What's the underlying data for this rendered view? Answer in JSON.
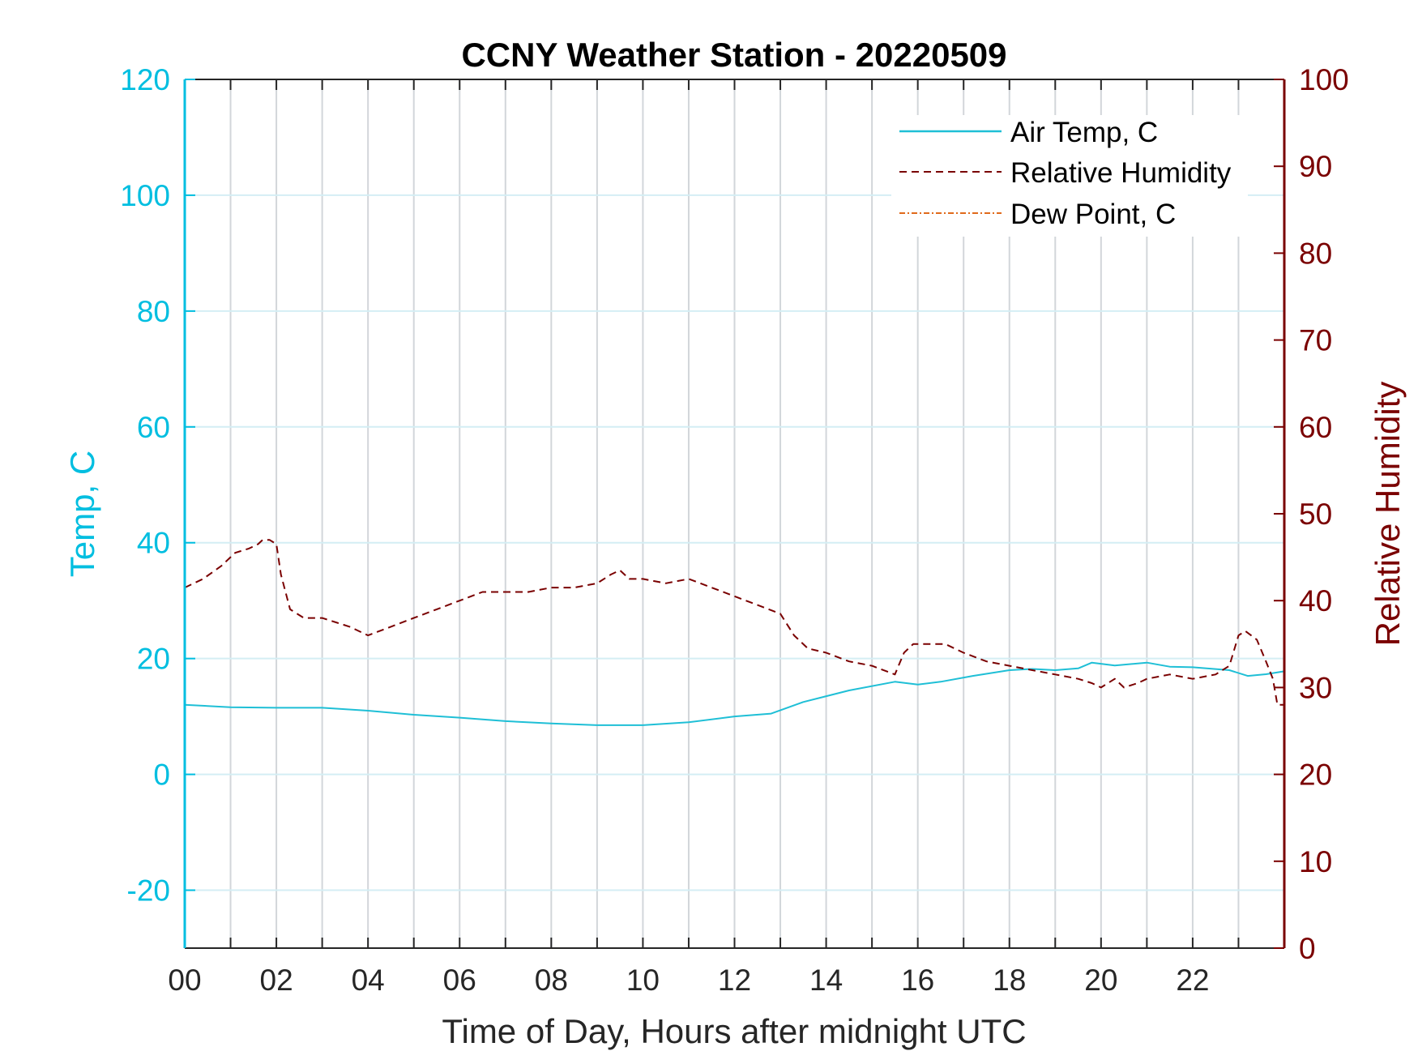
{
  "chart_data": {
    "type": "line",
    "title": "CCNY Weather Station - 20220509",
    "xlabel": "Time of Day, Hours after midnight UTC",
    "ylabel_left": "Temp, C",
    "ylabel_right": "Relative Humidity",
    "xlim": [
      0,
      24
    ],
    "ylim_left": [
      -30,
      120
    ],
    "ylim_right": [
      0,
      100
    ],
    "x_ticks": [
      0,
      2,
      4,
      6,
      8,
      10,
      12,
      14,
      16,
      18,
      20,
      22
    ],
    "x_tick_labels": [
      "00",
      "02",
      "04",
      "06",
      "08",
      "10",
      "12",
      "14",
      "16",
      "18",
      "20",
      "22"
    ],
    "y_ticks_left": [
      120,
      100,
      80,
      60,
      40,
      20,
      0,
      -20
    ],
    "y_ticks_right": [
      100,
      90,
      80,
      70,
      60,
      50,
      40,
      30,
      20,
      10,
      0
    ],
    "grid": true,
    "legend_position": "top-right",
    "colors": {
      "left_axis": "#00BEE0",
      "right_axis": "#7A0000",
      "air_temp": "#1FBFD6",
      "humidity": "#7A0000",
      "dew_point": "#E06A1B"
    },
    "series": [
      {
        "name": "Air Temp, C",
        "axis": "left",
        "style": "solid",
        "x": [
          0,
          1,
          2,
          3,
          4,
          5,
          6,
          7,
          8,
          9,
          10,
          11,
          12,
          12.8,
          13.5,
          14.5,
          15.5,
          16,
          16.5,
          17.2,
          18,
          18.5,
          19,
          19.5,
          19.8,
          20.3,
          21,
          21.5,
          22,
          22.8,
          23.2,
          23.6,
          24
        ],
        "values": [
          12,
          11.6,
          11.5,
          11.5,
          11,
          10.3,
          9.8,
          9.2,
          8.8,
          8.5,
          8.5,
          9,
          10,
          10.5,
          12.5,
          14.5,
          16,
          15.5,
          16,
          17,
          18,
          18.2,
          18,
          18.3,
          19.3,
          18.8,
          19.3,
          18.6,
          18.5,
          18,
          17,
          17.3,
          17.8
        ]
      },
      {
        "name": "Relative Humidity",
        "axis": "right",
        "style": "dashed",
        "x": [
          0,
          0.4,
          0.8,
          1.1,
          1.4,
          1.6,
          1.7,
          1.85,
          2,
          2.1,
          2.3,
          2.6,
          3,
          3.3,
          3.6,
          4,
          4.5,
          5,
          5.5,
          6,
          6.5,
          7,
          7.5,
          8,
          8.5,
          9,
          9.3,
          9.5,
          9.7,
          10,
          10.5,
          11,
          11.5,
          12,
          12.5,
          13,
          13.3,
          13.6,
          14,
          14.5,
          15,
          15.5,
          15.7,
          15.9,
          16.2,
          16.6,
          17,
          17.5,
          18,
          18.5,
          19,
          19.5,
          19.8,
          20,
          20.3,
          20.5,
          20.8,
          21,
          21.5,
          22,
          22.5,
          22.8,
          23,
          23.15,
          23.4,
          23.6,
          23.75,
          23.85,
          24
        ],
        "values": [
          41.5,
          42.5,
          44,
          45.5,
          46,
          46.5,
          47,
          47,
          46.5,
          43,
          39,
          38,
          38,
          37.5,
          37,
          36,
          37,
          38,
          39,
          40,
          41,
          41,
          41,
          41.5,
          41.5,
          42,
          43,
          43.5,
          42.5,
          42.5,
          42,
          42.5,
          41.5,
          40.5,
          39.5,
          38.5,
          36,
          34.5,
          34,
          33,
          32.5,
          31.5,
          34,
          35,
          35,
          35,
          34,
          33,
          32.5,
          32,
          31.5,
          31,
          30.5,
          30,
          31,
          30,
          30.5,
          31,
          31.5,
          31,
          31.5,
          32.5,
          36,
          36.5,
          35.5,
          33,
          31,
          28,
          28
        ]
      },
      {
        "name": "Dew Point, C",
        "axis": "left",
        "style": "dash-dot",
        "x": [],
        "values": []
      }
    ]
  }
}
